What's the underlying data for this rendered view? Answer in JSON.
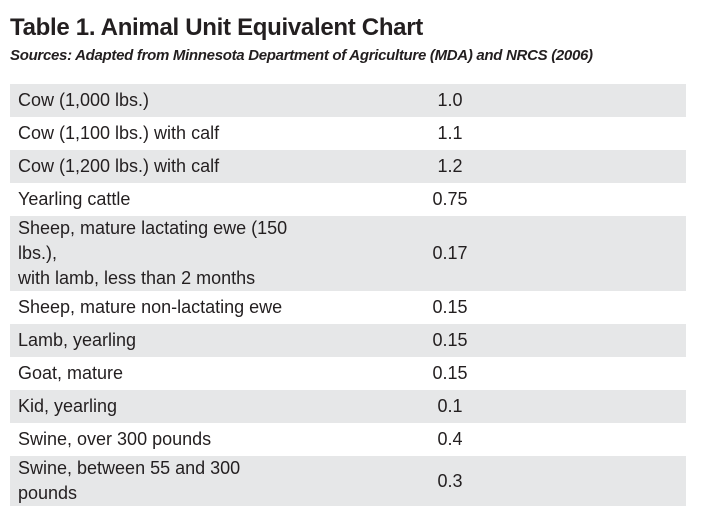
{
  "header": {
    "title": "Table 1. Animal Unit Equivalent Chart",
    "subtitle": "Sources: Adapted from Minnesota Department of Agriculture (MDA) and NRCS (2006)"
  },
  "table": {
    "rows": [
      [
        "Cow (1,000 lbs.)",
        "1.0"
      ],
      [
        "Cow (1,100 lbs.) with calf",
        "1.1"
      ],
      [
        "Cow (1,200 lbs.) with calf",
        "1.2"
      ],
      [
        "Yearling cattle",
        "0.75"
      ],
      [
        "Sheep, mature lactating ewe (150 lbs.),\nwith lamb, less than 2 months",
        "0.17"
      ],
      [
        "Sheep, mature non-lactating ewe",
        "0.15"
      ],
      [
        "Lamb, yearling",
        "0.15"
      ],
      [
        "Goat, mature",
        "0.15"
      ],
      [
        "Kid, yearling",
        "0.1"
      ],
      [
        "Swine, over 300 pounds",
        "0.4"
      ],
      [
        "Swine, between 55 and 300 pounds",
        "0.3"
      ]
    ]
  }
}
